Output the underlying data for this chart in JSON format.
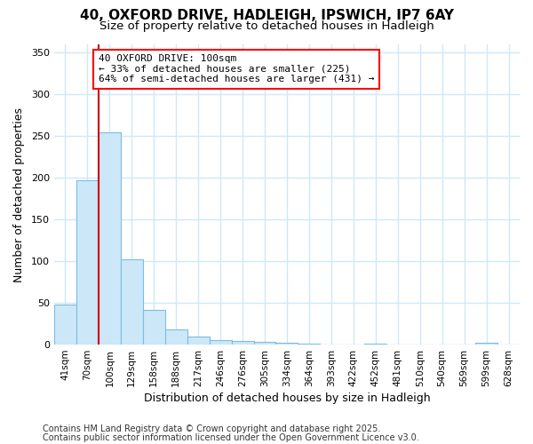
{
  "title_line1": "40, OXFORD DRIVE, HADLEIGH, IPSWICH, IP7 6AY",
  "title_line2": "Size of property relative to detached houses in Hadleigh",
  "xlabel": "Distribution of detached houses by size in Hadleigh",
  "ylabel": "Number of detached properties",
  "categories": [
    "41sqm",
    "70sqm",
    "100sqm",
    "129sqm",
    "158sqm",
    "188sqm",
    "217sqm",
    "246sqm",
    "276sqm",
    "305sqm",
    "334sqm",
    "364sqm",
    "393sqm",
    "422sqm",
    "452sqm",
    "481sqm",
    "510sqm",
    "540sqm",
    "569sqm",
    "599sqm",
    "628sqm"
  ],
  "values": [
    48,
    197,
    255,
    102,
    42,
    18,
    10,
    5,
    4,
    3,
    2,
    1,
    0,
    0,
    1,
    0,
    0,
    0,
    0,
    2,
    0
  ],
  "bar_color": "#cce8f8",
  "bar_edge_color": "#7bbde0",
  "marker_index": 2,
  "marker_color": "#cc0000",
  "ylim": [
    0,
    360
  ],
  "yticks": [
    0,
    50,
    100,
    150,
    200,
    250,
    300,
    350
  ],
  "annotation_text": "40 OXFORD DRIVE: 100sqm\n← 33% of detached houses are smaller (225)\n64% of semi-detached houses are larger (431) →",
  "footnote_line1": "Contains HM Land Registry data © Crown copyright and database right 2025.",
  "footnote_line2": "Contains public sector information licensed under the Open Government Licence v3.0.",
  "bg_color": "#ffffff",
  "plot_bg_color": "#ffffff",
  "grid_color": "#d0e8f8",
  "title_fontsize": 11,
  "subtitle_fontsize": 9.5,
  "axis_label_fontsize": 9,
  "tick_fontsize": 7.5,
  "annotation_fontsize": 8,
  "footnote_fontsize": 7
}
